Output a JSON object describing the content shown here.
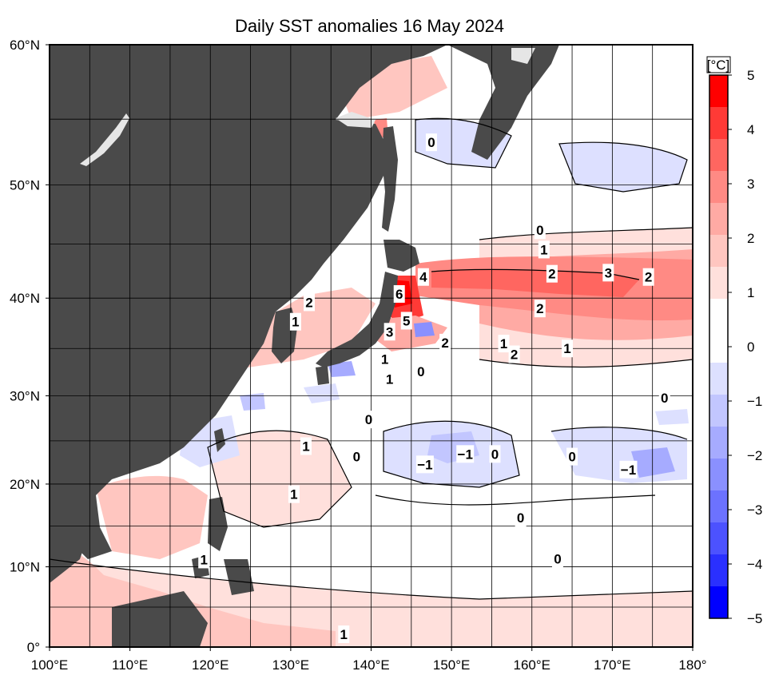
{
  "title": "Daily SST anomalies 16 May 2024",
  "colorbar": {
    "unit": "[°C]",
    "tick_labels": [
      "5",
      "4",
      "3",
      "2",
      "1",
      "0",
      "−1",
      "−2",
      "−3",
      "−4",
      "−5"
    ],
    "colors": [
      "#ff0000",
      "#ff3a36",
      "#ff6660",
      "#ff8a84",
      "#ffaaa4",
      "#ffc6c0",
      "#ffe0dc",
      "#ffffff",
      "#ffffff",
      "#dde0ff",
      "#c2c6ff",
      "#a6abff",
      "#8a90ff",
      "#6c72ff",
      "#4c52ff",
      "#2a30ff",
      "#0000ff"
    ]
  },
  "axes": {
    "lon_labels": [
      "100°E",
      "110°E",
      "120°E",
      "130°E",
      "140°E",
      "150°E",
      "160°E",
      "170°E",
      "180°"
    ],
    "lat_labels": [
      "60°N",
      "50°N",
      "40°N",
      "30°N",
      "20°N",
      "10°N",
      "0°"
    ]
  },
  "colors": {
    "land": "#4a4a4a",
    "sea_ice": "#e6e6e6",
    "grid": "#000000"
  },
  "contour_labels": [
    {
      "text": "0",
      "lon": 147.5,
      "lat": 53.3
    },
    {
      "text": "0",
      "lon": 161.0,
      "lat": 46.2
    },
    {
      "text": "1",
      "lon": 161.5,
      "lat": 44.5
    },
    {
      "text": "2",
      "lon": 162.5,
      "lat": 42.3
    },
    {
      "text": "3",
      "lon": 169.5,
      "lat": 42.4
    },
    {
      "text": "2",
      "lon": 174.5,
      "lat": 42.0
    },
    {
      "text": "4",
      "lon": 146.5,
      "lat": 42.0
    },
    {
      "text": "6",
      "lon": 143.5,
      "lat": 40.4
    },
    {
      "text": "5",
      "lon": 144.4,
      "lat": 37.8
    },
    {
      "text": "3",
      "lon": 142.3,
      "lat": 36.7
    },
    {
      "text": "2",
      "lon": 149.2,
      "lat": 35.6
    },
    {
      "text": "2",
      "lon": 161.0,
      "lat": 39.0
    },
    {
      "text": "1",
      "lon": 156.5,
      "lat": 35.5
    },
    {
      "text": "2",
      "lon": 157.8,
      "lat": 34.4
    },
    {
      "text": "1",
      "lon": 164.4,
      "lat": 35.0
    },
    {
      "text": "2",
      "lon": 132.3,
      "lat": 39.6
    },
    {
      "text": "1",
      "lon": 130.6,
      "lat": 37.7
    },
    {
      "text": "1",
      "lon": 141.7,
      "lat": 33.9
    },
    {
      "text": "1",
      "lon": 142.3,
      "lat": 31.8
    },
    {
      "text": "0",
      "lon": 146.2,
      "lat": 32.6
    },
    {
      "text": "0",
      "lon": 139.7,
      "lat": 27.4
    },
    {
      "text": "0",
      "lon": 138.2,
      "lat": 23.2
    },
    {
      "text": "1",
      "lon": 131.9,
      "lat": 24.4
    },
    {
      "text": "1",
      "lon": 130.4,
      "lat": 18.8
    },
    {
      "text": "1",
      "lon": 119.2,
      "lat": 10.9
    },
    {
      "text": "1",
      "lon": 136.6,
      "lat": 1.6
    },
    {
      "text": "−1",
      "lon": 146.7,
      "lat": 22.3
    },
    {
      "text": "−1",
      "lon": 151.7,
      "lat": 23.5
    },
    {
      "text": "0",
      "lon": 155.4,
      "lat": 23.5
    },
    {
      "text": "0",
      "lon": 165.0,
      "lat": 23.2
    },
    {
      "text": "−1",
      "lon": 172.0,
      "lat": 21.7
    },
    {
      "text": "0",
      "lon": 176.5,
      "lat": 29.8
    },
    {
      "text": "0",
      "lon": 158.6,
      "lat": 16.0
    },
    {
      "text": "0",
      "lon": 163.2,
      "lat": 11.0
    }
  ]
}
